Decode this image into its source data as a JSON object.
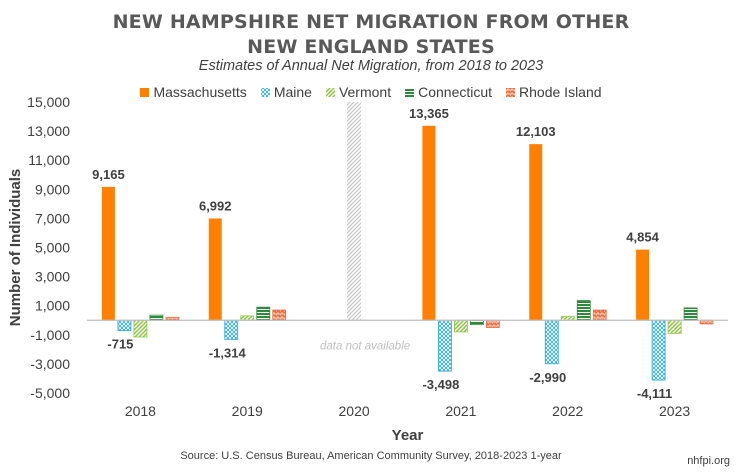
{
  "chart_data": {
    "type": "bar",
    "title": "NEW HAMPSHIRE NET MIGRATION FROM OTHER NEW ENGLAND STATES",
    "subtitle": "Estimates of Annual Net Migration, from 2018 to 2023",
    "xlabel": "Year",
    "ylabel": "Number of Individuals",
    "categories": [
      "2018",
      "2019",
      "2020",
      "2021",
      "2022",
      "2023"
    ],
    "ylim": [
      -5000,
      15000
    ],
    "yticks": [
      -5000,
      -3000,
      -1000,
      1000,
      3000,
      5000,
      7000,
      9000,
      11000,
      13000,
      15000
    ],
    "ytick_labels": [
      "-5,000",
      "-3,000",
      "-1,000",
      "1,000",
      "3,000",
      "5,000",
      "7,000",
      "9,000",
      "11,000",
      "13,000",
      "15,000"
    ],
    "series": [
      {
        "name": "Massachusetts",
        "color": "#ff8000",
        "pattern": "solid",
        "values": [
          9165,
          6992,
          null,
          13365,
          12103,
          4854
        ]
      },
      {
        "name": "Maine",
        "color": "#29a8e0",
        "pattern": "crosshatch",
        "values": [
          -715,
          -1314,
          null,
          -3498,
          -2990,
          -4111
        ]
      },
      {
        "name": "Vermont",
        "color": "#8cc63f",
        "pattern": "diagonal",
        "values": [
          -1150,
          300,
          null,
          -800,
          250,
          -900
        ]
      },
      {
        "name": "Connecticut",
        "color": "#2e8b3a",
        "pattern": "horizontal",
        "values": [
          350,
          900,
          null,
          -300,
          1350,
          850
        ]
      },
      {
        "name": "Rhode Island",
        "color": "#f26b3a",
        "pattern": "brick",
        "values": [
          200,
          700,
          null,
          -500,
          700,
          -250
        ]
      }
    ],
    "data_labels": [
      {
        "category": "2018",
        "series": "Massachusetts",
        "text": "9,165"
      },
      {
        "category": "2018",
        "series": "Maine",
        "text": "-715"
      },
      {
        "category": "2019",
        "series": "Massachusetts",
        "text": "6,992"
      },
      {
        "category": "2019",
        "series": "Maine",
        "text": "-1,314"
      },
      {
        "category": "2021",
        "series": "Massachusetts",
        "text": "13,365"
      },
      {
        "category": "2021",
        "series": "Maine",
        "text": "-3,498"
      },
      {
        "category": "2022",
        "series": "Massachusetts",
        "text": "12,103"
      },
      {
        "category": "2022",
        "series": "Maine",
        "text": "-2,990"
      },
      {
        "category": "2023",
        "series": "Massachusetts",
        "text": "4,854"
      },
      {
        "category": "2023",
        "series": "Maine",
        "text": "-4,111"
      }
    ],
    "annotations": [
      {
        "category": "2020",
        "text": "data not available"
      }
    ],
    "legend_position": "top",
    "grid": false
  },
  "footer": {
    "source": "Source: U.S. Census Bureau, American Community Survey, 2018-2023 1-year",
    "credit": "nhfpi.org"
  }
}
